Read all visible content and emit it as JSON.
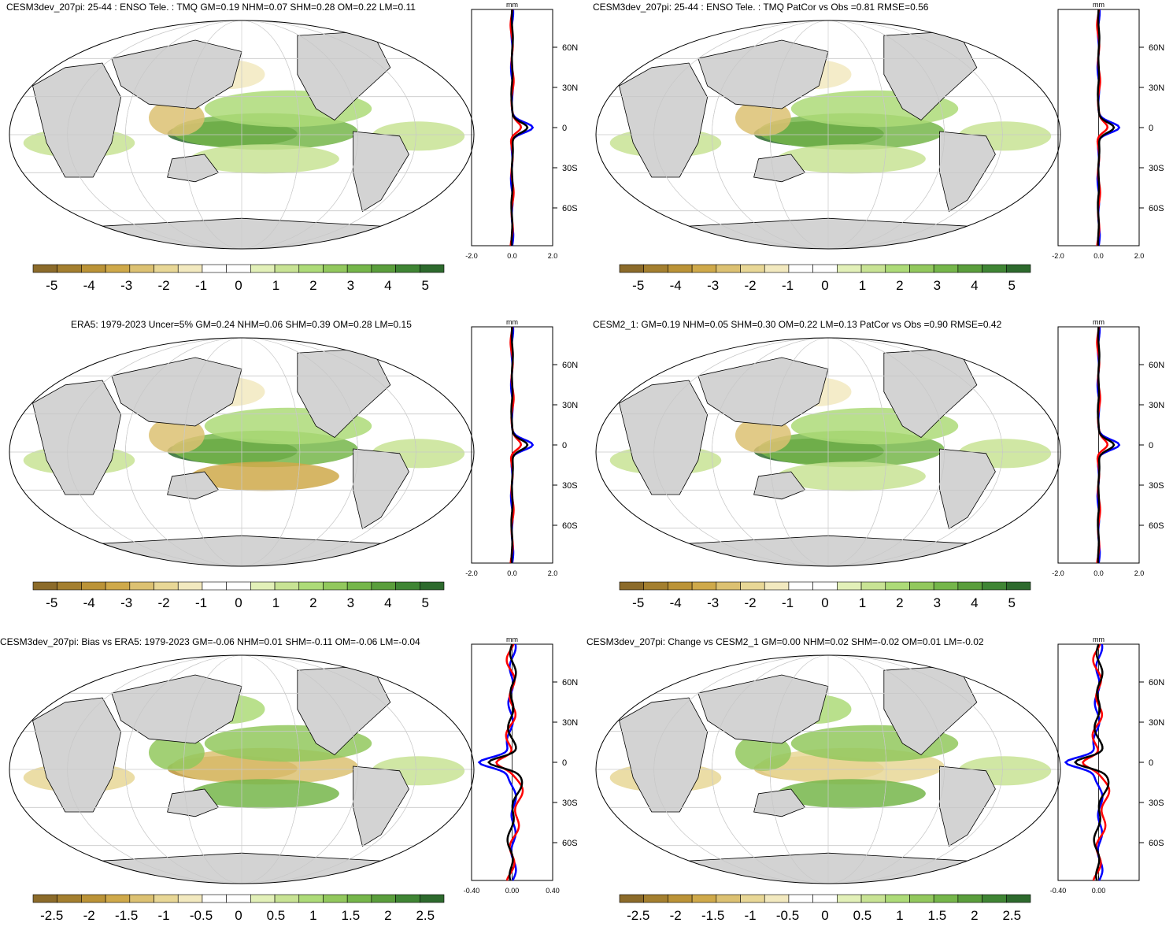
{
  "colors": {
    "land": "#d3d3d3",
    "ocean": "#ffffff",
    "model_line": "#0000ff",
    "obs_line": "#ff0000",
    "ref_line": "#000000",
    "scale_brown_dark": "#8c6b2a",
    "scale_green_dark": "#2d6a2d"
  },
  "colorbar_full": [
    "-5",
    "-4",
    "-3",
    "-2",
    "-1",
    "0",
    "1",
    "2",
    "3",
    "4",
    "5"
  ],
  "colorbar_diff": [
    "-2.5",
    "-2",
    "-1.5",
    "-1",
    "-0.5",
    "0",
    "0.5",
    "1",
    "1.5",
    "2",
    "2.5"
  ],
  "lat_labels": [
    "60N",
    "30N",
    "0",
    "30S",
    "60S"
  ],
  "unit": "mm",
  "panels": [
    {
      "title": "CESM3dev_207pi: 25-44 : ENSO Tele. : TMQ GM=0.19 NHM=0.07 SHM=0.28 OM=0.22 LM=0.11",
      "x_ticks": [
        "-2.0",
        "0.0",
        "2.0"
      ],
      "scale": "full"
    },
    {
      "title": "CESM3dev_207pi: 25-44 : ENSO Tele. : TMQ PatCor vs Obs =0.81 RMSE=0.56",
      "x_ticks": [
        "-2.0",
        "0.0",
        "2.0"
      ],
      "scale": "full"
    },
    {
      "title": "ERA5: 1979-2023 Uncer=5% GM=0.24 NHM=0.06 SHM=0.39 OM=0.28 LM=0.15",
      "x_ticks": [
        "-2.0",
        "0.0",
        "2.0"
      ],
      "scale": "full"
    },
    {
      "title": "CESM2_1: GM=0.19 NHM=0.05 SHM=0.30 OM=0.22 LM=0.13 PatCor vs Obs =0.90 RMSE=0.42",
      "x_ticks": [
        "-2.0",
        "0.0",
        "2.0"
      ],
      "scale": "full"
    },
    {
      "title": "CESM3dev_207pi: Bias vs ERA5: 1979-2023 GM=-0.06 NHM=0.01 SHM=-0.11 OM=-0.06 LM=-0.04",
      "x_ticks": [
        "-0.40",
        "0.00",
        "0.40"
      ],
      "scale": "diff"
    },
    {
      "title": "CESM3dev_207pi: Change vs CESM2_1 GM=0.00 NHM=0.02 SHM=-0.02 OM=0.01 LM=-0.02",
      "x_ticks": [
        "-0.40",
        "0.00"
      ],
      "scale": "diff"
    }
  ]
}
